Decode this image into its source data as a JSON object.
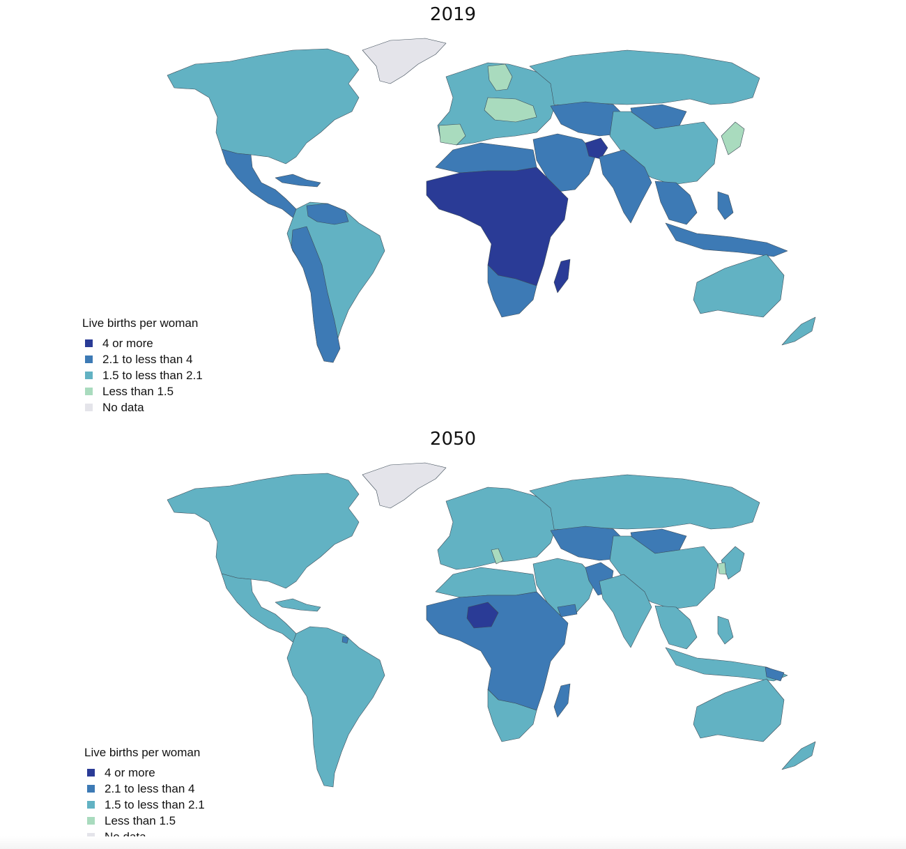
{
  "colors": {
    "c4plus": "#2a3b96",
    "c21to4": "#3d7ab5",
    "c15to21": "#62b2c3",
    "lt15": "#a9dbbe",
    "nodata": "#e4e4ea"
  },
  "maps": [
    {
      "title": "2019",
      "legend": {
        "title": "Live births per woman",
        "items": [
          {
            "label": "4 or more",
            "color": "#2a3b96"
          },
          {
            "label": "2.1 to less than 4",
            "color": "#3d7ab5"
          },
          {
            "label": "1.5 to less than 2.1",
            "color": "#62b2c3"
          },
          {
            "label": "Less than 1.5",
            "color": "#a9dbbe"
          },
          {
            "label": "No data",
            "color": "#e4e4ea"
          }
        ]
      }
    },
    {
      "title": "2050",
      "legend": {
        "title": "Live births per woman",
        "items": [
          {
            "label": "4 or more",
            "color": "#2a3b96"
          },
          {
            "label": "2.1 to less than 4",
            "color": "#3d7ab5"
          },
          {
            "label": "1.5 to less than 2.1",
            "color": "#62b2c3"
          },
          {
            "label": "Less than 1.5",
            "color": "#a9dbbe"
          },
          {
            "label": "No data",
            "color": "#e4e4ea"
          }
        ]
      }
    }
  ]
}
